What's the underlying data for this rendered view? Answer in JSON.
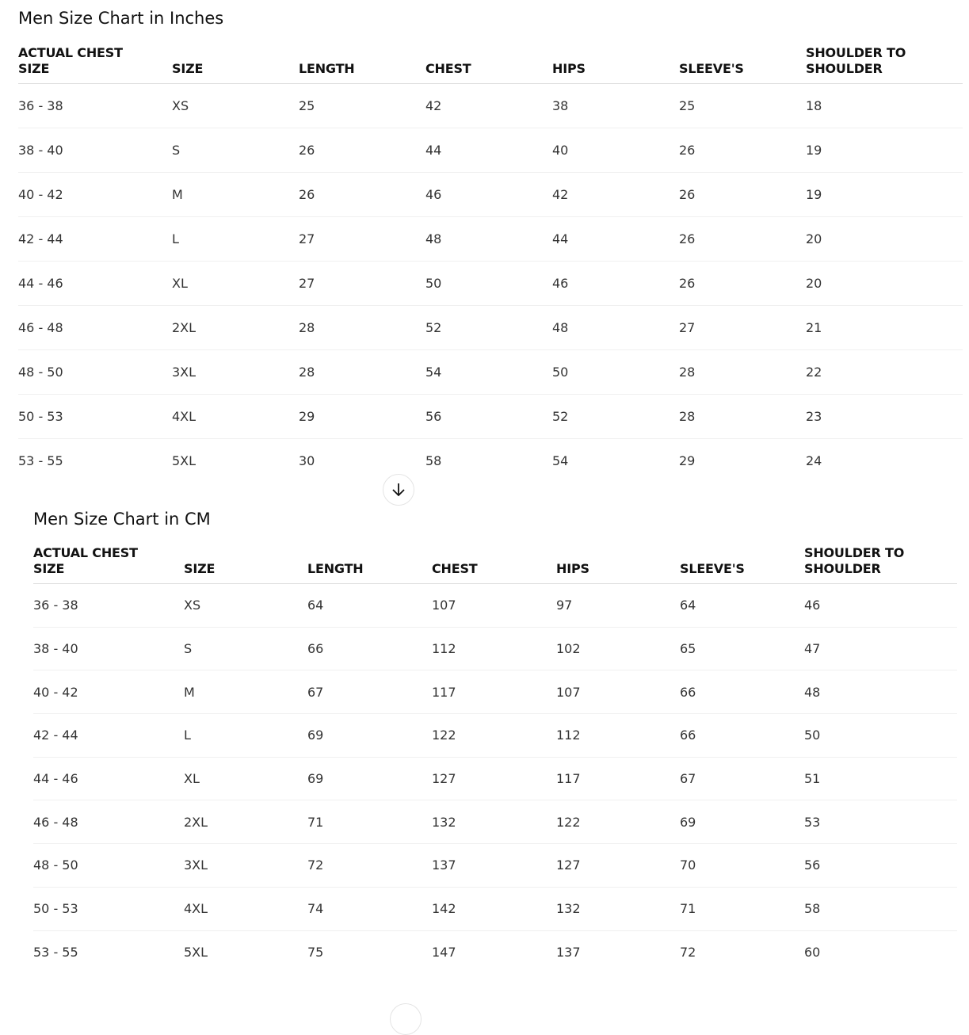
{
  "inches": {
    "title": "Men Size Chart in Inches",
    "headers": [
      "ACTUAL CHEST SIZE",
      "SIZE",
      "LENGTH",
      "CHEST",
      "HIPS",
      "SLEEVE'S",
      "SHOULDER TO SHOULDER"
    ],
    "rows": [
      [
        "36 - 38",
        "XS",
        "25",
        "42",
        "38",
        "25",
        "18"
      ],
      [
        "38 - 40",
        "S",
        "26",
        "44",
        "40",
        "26",
        "19"
      ],
      [
        "40 - 42",
        "M",
        "26",
        "46",
        "42",
        "26",
        "19"
      ],
      [
        "42 - 44",
        "L",
        "27",
        "48",
        "44",
        "26",
        "20"
      ],
      [
        "44 - 46",
        "XL",
        "27",
        "50",
        "46",
        "26",
        "20"
      ],
      [
        "46 - 48",
        "2XL",
        "28",
        "52",
        "48",
        "27",
        "21"
      ],
      [
        "48 - 50",
        "3XL",
        "28",
        "54",
        "50",
        "28",
        "22"
      ],
      [
        "50 - 53",
        "4XL",
        "29",
        "56",
        "52",
        "28",
        "23"
      ],
      [
        "53 - 55",
        "5XL",
        "30",
        "58",
        "54",
        "29",
        "24"
      ]
    ]
  },
  "cm": {
    "title": "Men Size Chart in CM",
    "headers": [
      "ACTUAL CHEST SIZE",
      "SIZE",
      "LENGTH",
      "CHEST",
      "HIPS",
      "SLEEVE'S",
      "SHOULDER TO SHOULDER"
    ],
    "rows": [
      [
        "36 - 38",
        "XS",
        "64",
        "107",
        "97",
        "64",
        "46"
      ],
      [
        "38 - 40",
        "S",
        "66",
        "112",
        "102",
        "65",
        "47"
      ],
      [
        "40 - 42",
        "M",
        "67",
        "117",
        "107",
        "66",
        "48"
      ],
      [
        "42 - 44",
        "L",
        "69",
        "122",
        "112",
        "66",
        "50"
      ],
      [
        "44 - 46",
        "XL",
        "69",
        "127",
        "117",
        "67",
        "51"
      ],
      [
        "46 - 48",
        "2XL",
        "71",
        "132",
        "122",
        "69",
        "53"
      ],
      [
        "48 - 50",
        "3XL",
        "72",
        "137",
        "127",
        "70",
        "56"
      ],
      [
        "50 - 53",
        "4XL",
        "74",
        "142",
        "132",
        "71",
        "58"
      ],
      [
        "53 - 55",
        "5XL",
        "75",
        "147",
        "137",
        "72",
        "60"
      ]
    ]
  },
  "scroll_button": {
    "icon": "arrow-down-icon"
  }
}
